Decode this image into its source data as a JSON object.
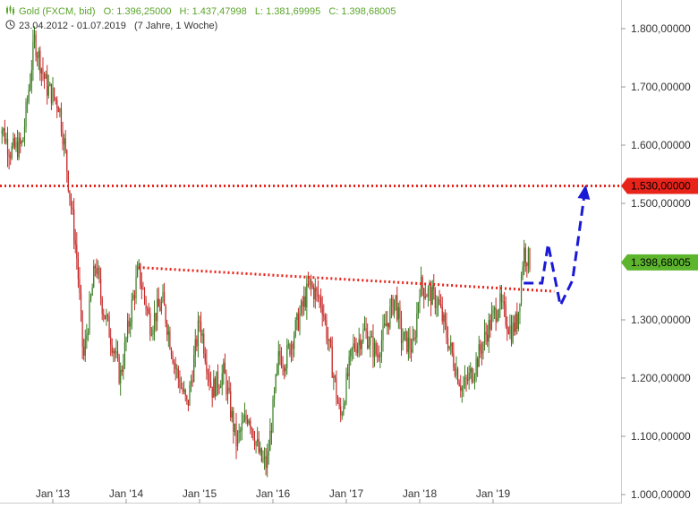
{
  "header": {
    "instrument": "Gold (FXCM, bid)",
    "open": "O: 1.396,25000",
    "high": "H: 1.437,47998",
    "low": "L: 1.381,69995",
    "close": "C: 1.398,68005",
    "date_range": "23.04.2012 - 01.07.2019",
    "period": "(7 Jahre, 1 Woche)"
  },
  "colors": {
    "up": "#3a7d22",
    "down": "#c62828",
    "resistance": "#e8241a",
    "trendline": "#e8241a",
    "projection": "#1a1ad6",
    "price_tag": "#5db52e",
    "level_tag": "#e8241a",
    "header_green": "#5ba52a"
  },
  "chart_data": {
    "type": "candlestick",
    "x_ticks": [
      "Jan '13",
      "Jan '14",
      "Jan '15",
      "Jan '16",
      "Jan '17",
      "Jan '18",
      "Jan '19"
    ],
    "y_ticks": [
      "1.800,00000",
      "1.700,00000",
      "1.600,00000",
      "1.500,00000",
      "1.300,00000",
      "1.200,00000",
      "1.100,00000",
      "1.000,00000"
    ],
    "ylim": [
      1000,
      1810
    ],
    "grid": false,
    "horizontal_level": {
      "value": 1530,
      "label": "1.530,00000"
    },
    "last_price": {
      "value": 1398.68,
      "label": "1.398,68005"
    },
    "trendline": {
      "from": [
        "2014-03",
        1390
      ],
      "to": [
        "2019-11",
        1349
      ]
    },
    "projection": [
      [
        "2019-06",
        1363
      ],
      [
        "2019-09",
        1363
      ],
      [
        "2019-10",
        1430
      ],
      [
        "2019-12",
        1325
      ],
      [
        "2020-02",
        1368
      ],
      [
        "2020-04",
        1520
      ]
    ],
    "price_path": [
      [
        "2012-04",
        1650
      ],
      [
        "2012-06",
        1590
      ],
      [
        "2012-08",
        1600
      ],
      [
        "2012-10",
        1780
      ],
      [
        "2012-12",
        1700
      ],
      [
        "2013-02",
        1670
      ],
      [
        "2013-03",
        1590
      ],
      [
        "2013-05",
        1400
      ],
      [
        "2013-06",
        1230
      ],
      [
        "2013-08",
        1400
      ],
      [
        "2013-09",
        1330
      ],
      [
        "2013-11",
        1250
      ],
      [
        "2013-12",
        1200
      ],
      [
        "2014-02",
        1330
      ],
      [
        "2014-03",
        1385
      ],
      [
        "2014-05",
        1290
      ],
      [
        "2014-06",
        1315
      ],
      [
        "2014-07",
        1330
      ],
      [
        "2014-09",
        1220
      ],
      [
        "2014-11",
        1150
      ],
      [
        "2015-01",
        1300
      ],
      [
        "2015-03",
        1180
      ],
      [
        "2015-05",
        1210
      ],
      [
        "2015-07",
        1090
      ],
      [
        "2015-09",
        1140
      ],
      [
        "2015-11",
        1060
      ],
      [
        "2015-12",
        1050
      ],
      [
        "2016-02",
        1240
      ],
      [
        "2016-03",
        1230
      ],
      [
        "2016-07",
        1360
      ],
      [
        "2016-09",
        1330
      ],
      [
        "2016-11",
        1200
      ],
      [
        "2016-12",
        1130
      ],
      [
        "2017-02",
        1250
      ],
      [
        "2017-04",
        1280
      ],
      [
        "2017-06",
        1240
      ],
      [
        "2017-09",
        1340
      ],
      [
        "2017-10",
        1270
      ],
      [
        "2017-12",
        1250
      ],
      [
        "2018-01",
        1360
      ],
      [
        "2018-04",
        1330
      ],
      [
        "2018-06",
        1250
      ],
      [
        "2018-08",
        1180
      ],
      [
        "2018-10",
        1220
      ],
      [
        "2018-12",
        1280
      ],
      [
        "2019-02",
        1330
      ],
      [
        "2019-04",
        1280
      ],
      [
        "2019-05",
        1300
      ],
      [
        "2019-06",
        1420
      ],
      [
        "2019-07",
        1399
      ]
    ]
  }
}
